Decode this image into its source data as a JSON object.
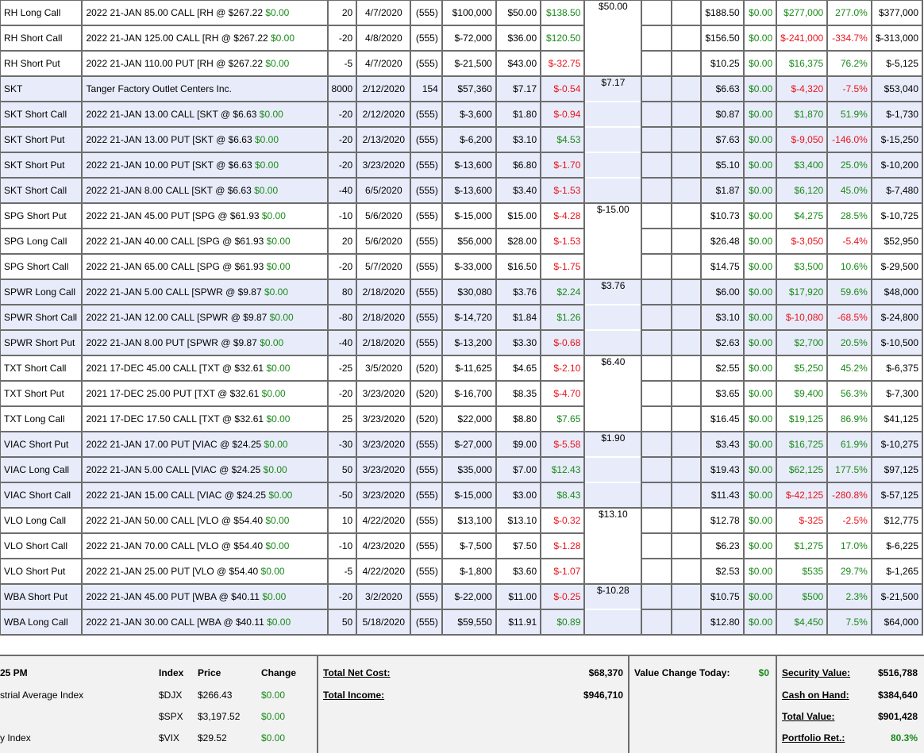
{
  "rows": [
    {
      "name": "RH Long Call",
      "desc": "2022 21-JAN 85.00 CALL [RH @ $267.22 ",
      "desc_chg": "$0.00",
      "qty": "20",
      "date": "4/7/2020",
      "days": "(555)",
      "cost": "$100,000",
      "price": "$50.00",
      "chg": "$138.50",
      "chg_sign": "pos",
      "grp": "$50.00",
      "cur": "$188.50",
      "today": "$0.00",
      "gain": "$277,000",
      "gain_sign": "pos",
      "pct": "277.0%",
      "pct_sign": "pos",
      "value": "$377,000"
    },
    {
      "name": "RH Short Call",
      "desc": "2022 21-JAN 125.00 CALL [RH @ $267.22 ",
      "desc_chg": "$0.00",
      "qty": "-20",
      "date": "4/8/2020",
      "days": "(555)",
      "cost": "$-72,000",
      "price": "$36.00",
      "chg": "$120.50",
      "chg_sign": "pos",
      "grp": "",
      "cur": "$156.50",
      "today": "$0.00",
      "gain": "$-241,000",
      "gain_sign": "neg",
      "pct": "-334.7%",
      "pct_sign": "neg",
      "value": "$-313,000"
    },
    {
      "name": "RH Short Put",
      "desc": "2022 21-JAN 110.00 PUT [RH @ $267.22 ",
      "desc_chg": "$0.00",
      "qty": "-5",
      "date": "4/7/2020",
      "days": "(555)",
      "cost": "$-21,500",
      "price": "$43.00",
      "chg": "$-32.75",
      "chg_sign": "neg",
      "grp": "",
      "cur": "$10.25",
      "today": "$0.00",
      "gain": "$16,375",
      "gain_sign": "pos",
      "pct": "76.2%",
      "pct_sign": "pos",
      "value": "$-5,125"
    },
    {
      "name": "SKT",
      "desc": "Tanger Factory Outlet Centers Inc.",
      "desc_chg": "",
      "qty": "8000",
      "date": "2/12/2020",
      "days": "154",
      "cost": "$57,360",
      "price": "$7.17",
      "chg": "$-0.54",
      "chg_sign": "neg",
      "grp": "$7.17",
      "cur": "$6.63",
      "today": "$0.00",
      "gain": "$-4,320",
      "gain_sign": "neg",
      "pct": "-7.5%",
      "pct_sign": "neg",
      "value": "$53,040"
    },
    {
      "name": "SKT Short Call",
      "desc": "2022 21-JAN 13.00 CALL [SKT @ $6.63 ",
      "desc_chg": "$0.00",
      "qty": "-20",
      "date": "2/12/2020",
      "days": "(555)",
      "cost": "$-3,600",
      "price": "$1.80",
      "chg": "$-0.94",
      "chg_sign": "neg",
      "grp": "",
      "cur": "$0.87",
      "today": "$0.00",
      "gain": "$1,870",
      "gain_sign": "pos",
      "pct": "51.9%",
      "pct_sign": "pos",
      "value": "$-1,730"
    },
    {
      "name": "SKT Short Put",
      "desc": "2022 21-JAN 13.00 PUT [SKT @ $6.63 ",
      "desc_chg": "$0.00",
      "qty": "-20",
      "date": "2/13/2020",
      "days": "(555)",
      "cost": "$-6,200",
      "price": "$3.10",
      "chg": "$4.53",
      "chg_sign": "pos",
      "grp": "",
      "cur": "$7.63",
      "today": "$0.00",
      "gain": "$-9,050",
      "gain_sign": "neg",
      "pct": "-146.0%",
      "pct_sign": "neg",
      "value": "$-15,250"
    },
    {
      "name": "SKT Short Put",
      "desc": "2022 21-JAN 10.00 PUT [SKT @ $6.63 ",
      "desc_chg": "$0.00",
      "qty": "-20",
      "date": "3/23/2020",
      "days": "(555)",
      "cost": "$-13,600",
      "price": "$6.80",
      "chg": "$-1.70",
      "chg_sign": "neg",
      "grp": "",
      "cur": "$5.10",
      "today": "$0.00",
      "gain": "$3,400",
      "gain_sign": "pos",
      "pct": "25.0%",
      "pct_sign": "pos",
      "value": "$-10,200"
    },
    {
      "name": "SKT Short Call",
      "desc": "2022 21-JAN 8.00 CALL [SKT @ $6.63 ",
      "desc_chg": "$0.00",
      "qty": "-40",
      "date": "6/5/2020",
      "days": "(555)",
      "cost": "$-13,600",
      "price": "$3.40",
      "chg": "$-1.53",
      "chg_sign": "neg",
      "grp": "",
      "cur": "$1.87",
      "today": "$0.00",
      "gain": "$6,120",
      "gain_sign": "pos",
      "pct": "45.0%",
      "pct_sign": "pos",
      "value": "$-7,480"
    },
    {
      "name": "SPG Short Put",
      "desc": "2022 21-JAN 45.00 PUT [SPG @ $61.93 ",
      "desc_chg": "$0.00",
      "qty": "-10",
      "date": "5/6/2020",
      "days": "(555)",
      "cost": "$-15,000",
      "price": "$15.00",
      "chg": "$-4.28",
      "chg_sign": "neg",
      "grp": "$-15.00",
      "cur": "$10.73",
      "today": "$0.00",
      "gain": "$4,275",
      "gain_sign": "pos",
      "pct": "28.5%",
      "pct_sign": "pos",
      "value": "$-10,725"
    },
    {
      "name": "SPG Long Call",
      "desc": "2022 21-JAN 40.00 CALL [SPG @ $61.93 ",
      "desc_chg": "$0.00",
      "qty": "20",
      "date": "5/6/2020",
      "days": "(555)",
      "cost": "$56,000",
      "price": "$28.00",
      "chg": "$-1.53",
      "chg_sign": "neg",
      "grp": "",
      "cur": "$26.48",
      "today": "$0.00",
      "gain": "$-3,050",
      "gain_sign": "neg",
      "pct": "-5.4%",
      "pct_sign": "neg",
      "value": "$52,950"
    },
    {
      "name": "SPG Short Call",
      "desc": "2022 21-JAN 65.00 CALL [SPG @ $61.93 ",
      "desc_chg": "$0.00",
      "qty": "-20",
      "date": "5/7/2020",
      "days": "(555)",
      "cost": "$-33,000",
      "price": "$16.50",
      "chg": "$-1.75",
      "chg_sign": "neg",
      "grp": "",
      "cur": "$14.75",
      "today": "$0.00",
      "gain": "$3,500",
      "gain_sign": "pos",
      "pct": "10.6%",
      "pct_sign": "pos",
      "value": "$-29,500"
    },
    {
      "name": "SPWR Long Call",
      "desc": "2022 21-JAN 5.00 CALL [SPWR @ $9.87 ",
      "desc_chg": "$0.00",
      "qty": "80",
      "date": "2/18/2020",
      "days": "(555)",
      "cost": "$30,080",
      "price": "$3.76",
      "chg": "$2.24",
      "chg_sign": "pos",
      "grp": "$3.76",
      "cur": "$6.00",
      "today": "$0.00",
      "gain": "$17,920",
      "gain_sign": "pos",
      "pct": "59.6%",
      "pct_sign": "pos",
      "value": "$48,000"
    },
    {
      "name": "SPWR Short Call",
      "desc": "2022 21-JAN 12.00 CALL [SPWR @ $9.87 ",
      "desc_chg": "$0.00",
      "qty": "-80",
      "date": "2/18/2020",
      "days": "(555)",
      "cost": "$-14,720",
      "price": "$1.84",
      "chg": "$1.26",
      "chg_sign": "pos",
      "grp": "",
      "cur": "$3.10",
      "today": "$0.00",
      "gain": "$-10,080",
      "gain_sign": "neg",
      "pct": "-68.5%",
      "pct_sign": "neg",
      "value": "$-24,800"
    },
    {
      "name": "SPWR Short Put",
      "desc": "2022 21-JAN 8.00 PUT [SPWR @ $9.87 ",
      "desc_chg": "$0.00",
      "qty": "-40",
      "date": "2/18/2020",
      "days": "(555)",
      "cost": "$-13,200",
      "price": "$3.30",
      "chg": "$-0.68",
      "chg_sign": "neg",
      "grp": "",
      "cur": "$2.63",
      "today": "$0.00",
      "gain": "$2,700",
      "gain_sign": "pos",
      "pct": "20.5%",
      "pct_sign": "pos",
      "value": "$-10,500"
    },
    {
      "name": "TXT Short Call",
      "desc": "2021 17-DEC 45.00 CALL [TXT @ $32.61 ",
      "desc_chg": "$0.00",
      "qty": "-25",
      "date": "3/5/2020",
      "days": "(520)",
      "cost": "$-11,625",
      "price": "$4.65",
      "chg": "$-2.10",
      "chg_sign": "neg",
      "grp": "$6.40",
      "cur": "$2.55",
      "today": "$0.00",
      "gain": "$5,250",
      "gain_sign": "pos",
      "pct": "45.2%",
      "pct_sign": "pos",
      "value": "$-6,375"
    },
    {
      "name": "TXT Short Put",
      "desc": "2021 17-DEC 25.00 PUT [TXT @ $32.61 ",
      "desc_chg": "$0.00",
      "qty": "-20",
      "date": "3/23/2020",
      "days": "(520)",
      "cost": "$-16,700",
      "price": "$8.35",
      "chg": "$-4.70",
      "chg_sign": "neg",
      "grp": "",
      "cur": "$3.65",
      "today": "$0.00",
      "gain": "$9,400",
      "gain_sign": "pos",
      "pct": "56.3%",
      "pct_sign": "pos",
      "value": "$-7,300"
    },
    {
      "name": "TXT Long Call",
      "desc": "2021 17-DEC 17.50 CALL [TXT @ $32.61 ",
      "desc_chg": "$0.00",
      "qty": "25",
      "date": "3/23/2020",
      "days": "(520)",
      "cost": "$22,000",
      "price": "$8.80",
      "chg": "$7.65",
      "chg_sign": "pos",
      "grp": "",
      "cur": "$16.45",
      "today": "$0.00",
      "gain": "$19,125",
      "gain_sign": "pos",
      "pct": "86.9%",
      "pct_sign": "pos",
      "value": "$41,125"
    },
    {
      "name": "VIAC Short Put",
      "desc": "2022 21-JAN 17.00 PUT [VIAC @ $24.25 ",
      "desc_chg": "$0.00",
      "qty": "-30",
      "date": "3/23/2020",
      "days": "(555)",
      "cost": "$-27,000",
      "price": "$9.00",
      "chg": "$-5.58",
      "chg_sign": "neg",
      "grp": "$1.90",
      "cur": "$3.43",
      "today": "$0.00",
      "gain": "$16,725",
      "gain_sign": "pos",
      "pct": "61.9%",
      "pct_sign": "pos",
      "value": "$-10,275"
    },
    {
      "name": "VIAC Long Call",
      "desc": "2022 21-JAN 5.00 CALL [VIAC @ $24.25 ",
      "desc_chg": "$0.00",
      "qty": "50",
      "date": "3/23/2020",
      "days": "(555)",
      "cost": "$35,000",
      "price": "$7.00",
      "chg": "$12.43",
      "chg_sign": "pos",
      "grp": "",
      "cur": "$19.43",
      "today": "$0.00",
      "gain": "$62,125",
      "gain_sign": "pos",
      "pct": "177.5%",
      "pct_sign": "pos",
      "value": "$97,125"
    },
    {
      "name": "VIAC Short Call",
      "desc": "2022 21-JAN 15.00 CALL [VIAC @ $24.25 ",
      "desc_chg": "$0.00",
      "qty": "-50",
      "date": "3/23/2020",
      "days": "(555)",
      "cost": "$-15,000",
      "price": "$3.00",
      "chg": "$8.43",
      "chg_sign": "pos",
      "grp": "",
      "cur": "$11.43",
      "today": "$0.00",
      "gain": "$-42,125",
      "gain_sign": "neg",
      "pct": "-280.8%",
      "pct_sign": "neg",
      "value": "$-57,125"
    },
    {
      "name": "VLO Long Call",
      "desc": "2022 21-JAN 50.00 CALL [VLO @ $54.40 ",
      "desc_chg": "$0.00",
      "qty": "10",
      "date": "4/22/2020",
      "days": "(555)",
      "cost": "$13,100",
      "price": "$13.10",
      "chg": "$-0.32",
      "chg_sign": "neg",
      "grp": "$13.10",
      "cur": "$12.78",
      "today": "$0.00",
      "gain": "$-325",
      "gain_sign": "neg",
      "pct": "-2.5%",
      "pct_sign": "neg",
      "value": "$12,775"
    },
    {
      "name": "VLO Short Call",
      "desc": "2022 21-JAN 70.00 CALL [VLO @ $54.40 ",
      "desc_chg": "$0.00",
      "qty": "-10",
      "date": "4/23/2020",
      "days": "(555)",
      "cost": "$-7,500",
      "price": "$7.50",
      "chg": "$-1.28",
      "chg_sign": "neg",
      "grp": "",
      "cur": "$6.23",
      "today": "$0.00",
      "gain": "$1,275",
      "gain_sign": "pos",
      "pct": "17.0%",
      "pct_sign": "pos",
      "value": "$-6,225"
    },
    {
      "name": "VLO Short Put",
      "desc": "2022 21-JAN 25.00 PUT [VLO @ $54.40 ",
      "desc_chg": "$0.00",
      "qty": "-5",
      "date": "4/22/2020",
      "days": "(555)",
      "cost": "$-1,800",
      "price": "$3.60",
      "chg": "$-1.07",
      "chg_sign": "neg",
      "grp": "",
      "cur": "$2.53",
      "today": "$0.00",
      "gain": "$535",
      "gain_sign": "pos",
      "pct": "29.7%",
      "pct_sign": "pos",
      "value": "$-1,265"
    },
    {
      "name": "WBA Short Put",
      "desc": "2022 21-JAN 45.00 PUT [WBA @ $40.11 ",
      "desc_chg": "$0.00",
      "qty": "-20",
      "date": "3/2/2020",
      "days": "(555)",
      "cost": "$-22,000",
      "price": "$11.00",
      "chg": "$-0.25",
      "chg_sign": "neg",
      "grp": "$-10.28",
      "cur": "$10.75",
      "today": "$0.00",
      "gain": "$500",
      "gain_sign": "pos",
      "pct": "2.3%",
      "pct_sign": "pos",
      "value": "$-21,500"
    },
    {
      "name": "WBA Long Call",
      "desc": "2022 21-JAN 30.00 CALL [WBA @ $40.11 ",
      "desc_chg": "$0.00",
      "qty": "50",
      "date": "5/18/2020",
      "days": "(555)",
      "cost": "$59,550",
      "price": "$11.91",
      "chg": "$0.89",
      "chg_sign": "pos",
      "grp": "",
      "cur": "$12.80",
      "today": "$0.00",
      "gain": "$4,450",
      "gain_sign": "pos",
      "pct": "7.5%",
      "pct_sign": "pos",
      "value": "$64,000"
    }
  ],
  "groups": [
    {
      "band": "white",
      "rows": 3
    },
    {
      "band": "band",
      "rows": 5
    },
    {
      "band": "white",
      "rows": 3
    },
    {
      "band": "band",
      "rows": 3
    },
    {
      "band": "white",
      "rows": 3
    },
    {
      "band": "band",
      "rows": 3
    },
    {
      "band": "white",
      "rows": 3
    },
    {
      "band": "band",
      "rows": 2
    }
  ],
  "footer": {
    "market": {
      "time_fragment": "25 PM",
      "headers": {
        "index": "Index",
        "price": "Price",
        "change": "Change"
      },
      "items": [
        {
          "label": "strial Average Index",
          "symbol": "$DJX",
          "price": "$266.43",
          "change": "$0.00"
        },
        {
          "label": "",
          "symbol": "$SPX",
          "price": "$3,197.52",
          "change": "$0.00"
        },
        {
          "label": "y Index",
          "symbol": "$VIX",
          "price": "$29.52",
          "change": "$0.00"
        }
      ]
    },
    "totals": {
      "net_cost_label": "Total Net Cost:",
      "net_cost": "$68,370",
      "income_label": "Total Income:",
      "income": "$946,710"
    },
    "today": {
      "label": "Value Change Today:",
      "value": "$0"
    },
    "summary": {
      "security_label": "Security Value:",
      "security": "$516,788",
      "cash_label": "Cash on Hand:",
      "cash": "$384,640",
      "total_label": "Total Value:",
      "total": "$901,428",
      "ret_label": "Portfolio Ret.:",
      "ret": "80.3%"
    }
  }
}
